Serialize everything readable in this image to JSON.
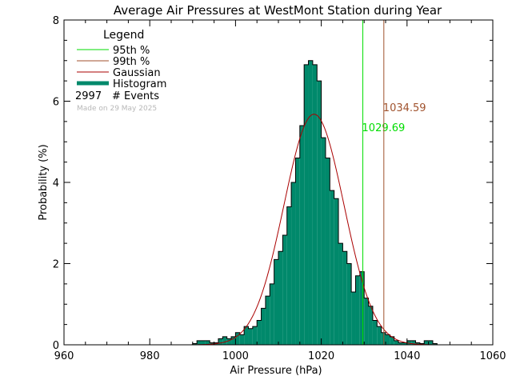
{
  "chart_data": {
    "type": "bar",
    "title": "Average Air Pressures at WestMont Station during Year",
    "xlabel": "Air Pressure (hPa)",
    "ylabel": "Probability (%)",
    "xlim": [
      960,
      1060
    ],
    "ylim": [
      0,
      8
    ],
    "xticks": [
      960,
      980,
      1000,
      1020,
      1040,
      1060
    ],
    "yticks": [
      0,
      2,
      4,
      6,
      8
    ],
    "bin_width": 1,
    "histogram": {
      "name": "Histogram",
      "color": "#00896b",
      "bin_starts": [
        990,
        991,
        992,
        993,
        994,
        995,
        996,
        997,
        998,
        999,
        1000,
        1001,
        1002,
        1003,
        1004,
        1005,
        1006,
        1007,
        1008,
        1009,
        1010,
        1011,
        1012,
        1013,
        1014,
        1015,
        1016,
        1017,
        1018,
        1019,
        1020,
        1021,
        1022,
        1023,
        1024,
        1025,
        1026,
        1027,
        1028,
        1029,
        1030,
        1031,
        1032,
        1033,
        1034,
        1035,
        1036,
        1037,
        1038,
        1039,
        1040,
        1041,
        1042,
        1043,
        1044,
        1045,
        1046
      ],
      "values": [
        0.03,
        0.1,
        0.1,
        0.1,
        0.05,
        0.05,
        0.15,
        0.2,
        0.15,
        0.2,
        0.3,
        0.25,
        0.45,
        0.4,
        0.45,
        0.6,
        0.9,
        1.2,
        1.5,
        2.1,
        2.3,
        2.7,
        3.4,
        4.0,
        4.6,
        5.4,
        6.9,
        7.0,
        6.9,
        6.5,
        5.1,
        4.6,
        3.8,
        3.6,
        2.5,
        2.3,
        2.0,
        1.3,
        1.7,
        1.8,
        1.15,
        0.95,
        0.6,
        0.45,
        0.3,
        0.25,
        0.2,
        0.1,
        0.05,
        0.05,
        0.1,
        0.1,
        0.05,
        0.03,
        0.1,
        0.1,
        0.03
      ]
    },
    "gaussian": {
      "name": "Gaussian",
      "color": "#aa0000",
      "mean": 1018.3,
      "peak": 5.68,
      "sigma": 7.0
    },
    "percentile_lines": [
      {
        "name": "95th %",
        "value": 1029.69,
        "label": "1029.69",
        "color": "#00dd00"
      },
      {
        "name": "99th %",
        "value": 1034.59,
        "label": "1034.59",
        "color": "#a0522d"
      }
    ],
    "legend": {
      "title": "Legend",
      "position": "top-left",
      "entries": [
        {
          "label": "95th %",
          "color": "#00dd00",
          "style": "line"
        },
        {
          "label": "99th %",
          "color": "#a0522d",
          "style": "line"
        },
        {
          "label": "Gaussian",
          "color": "#aa0000",
          "style": "line"
        },
        {
          "label": "Histogram",
          "color": "#00896b",
          "style": "thick"
        }
      ]
    },
    "events": {
      "count": "2997",
      "label": "# Events"
    },
    "made_on": "Made on 29 May 2025"
  }
}
